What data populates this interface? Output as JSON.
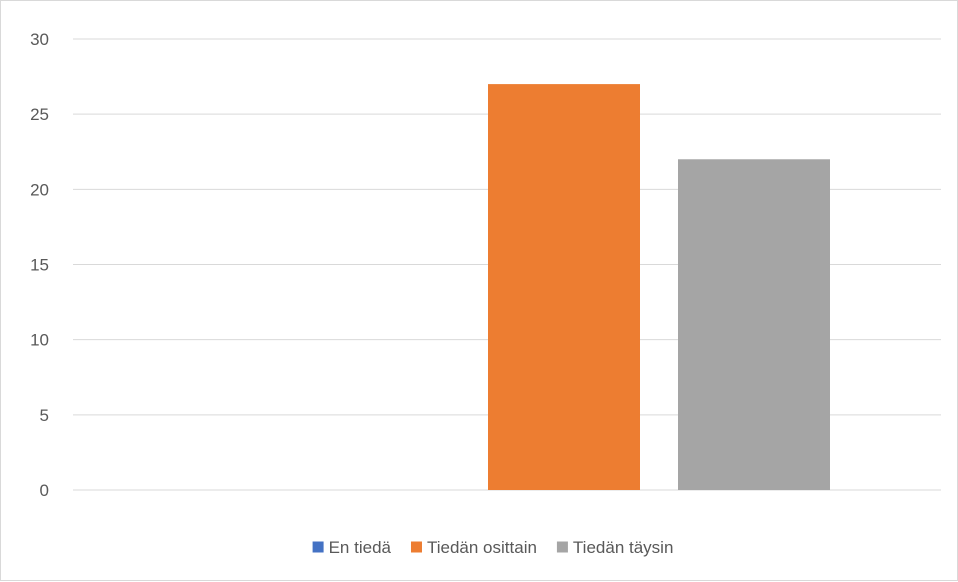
{
  "chart_data": {
    "type": "bar",
    "categories": [
      ""
    ],
    "series": [
      {
        "name": "En tiedä",
        "values": [
          0
        ],
        "color": "#4472c4"
      },
      {
        "name": "Tiedän osittain",
        "values": [
          27
        ],
        "color": "#ed7d31"
      },
      {
        "name": "Tiedän täysin",
        "values": [
          22
        ],
        "color": "#a5a5a5"
      }
    ],
    "ylim": [
      0,
      30
    ],
    "yticks": [
      "0",
      "5",
      "10",
      "15",
      "20",
      "25",
      "30"
    ],
    "grid": true,
    "legend": "bottom",
    "gridline_color": "#d9d9d9"
  }
}
